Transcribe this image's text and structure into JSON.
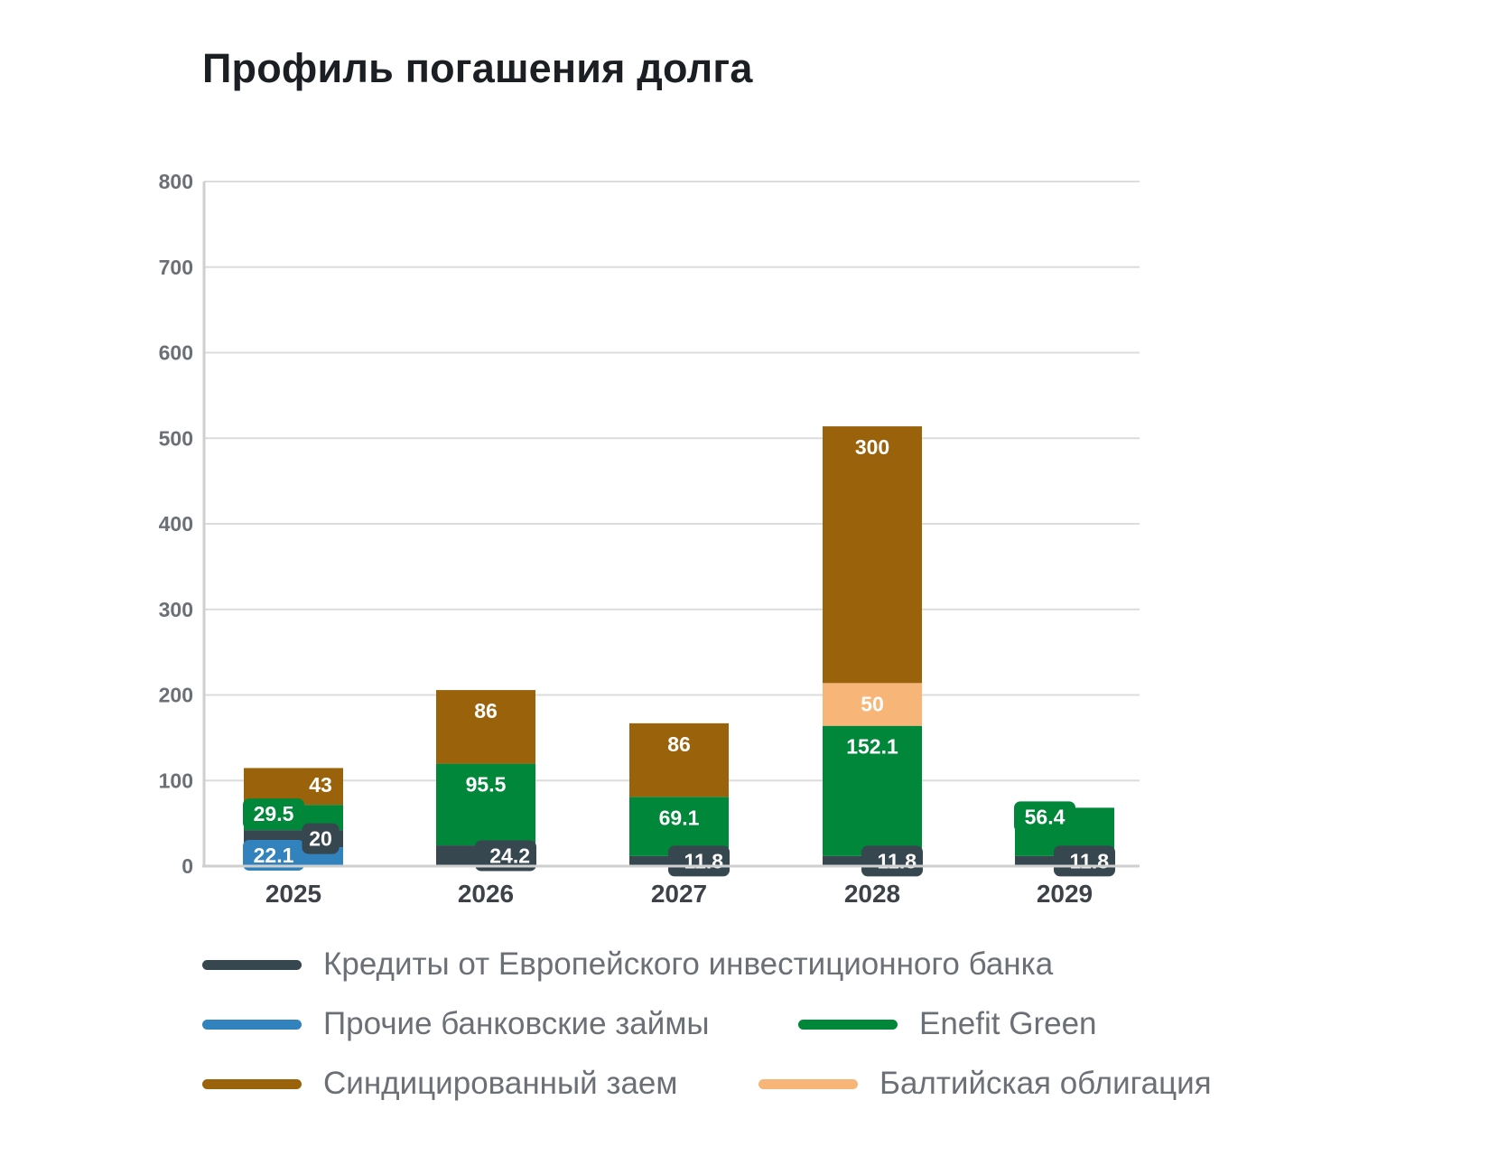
{
  "title": "Профиль погашения долга",
  "chart_data": {
    "type": "bar",
    "stacked": true,
    "title": "Профиль погашения долга",
    "categories": [
      "2025",
      "2026",
      "2027",
      "2028",
      "2029"
    ],
    "ylim": [
      0,
      800
    ],
    "yticks": [
      0,
      100,
      200,
      300,
      400,
      500,
      600,
      700,
      800
    ],
    "grid": true,
    "legend_position": "bottom",
    "series": [
      {
        "name": "Прочие банковские займы",
        "color": "#3182bd",
        "values": [
          22.1,
          0,
          0,
          0,
          0
        ]
      },
      {
        "name": "Кредиты от Европейского инвестиционного банка",
        "color": "#37474f",
        "values": [
          20,
          24.2,
          11.8,
          11.8,
          11.8
        ]
      },
      {
        "name": "Enefit Green",
        "color": "#00873a",
        "values": [
          29.5,
          95.5,
          69.1,
          152.1,
          56.4
        ]
      },
      {
        "name": "Балтийская облигация",
        "color": "#f7b577",
        "values": [
          0,
          0,
          0,
          50,
          0
        ]
      },
      {
        "name": "Синдицированный заем",
        "color": "#99620b",
        "values": [
          43,
          86,
          86,
          300,
          0
        ]
      }
    ]
  },
  "legend": [
    {
      "label": "Кредиты от Европейского инвестиционного банка",
      "color": "#37474f"
    },
    {
      "label": "Прочие банковские займы",
      "color": "#3182bd"
    },
    {
      "label": "Enefit Green",
      "color": "#00873a"
    },
    {
      "label": "Синдицированный заем",
      "color": "#99620b"
    },
    {
      "label": "Балтийская облигация",
      "color": "#f7b577"
    }
  ]
}
